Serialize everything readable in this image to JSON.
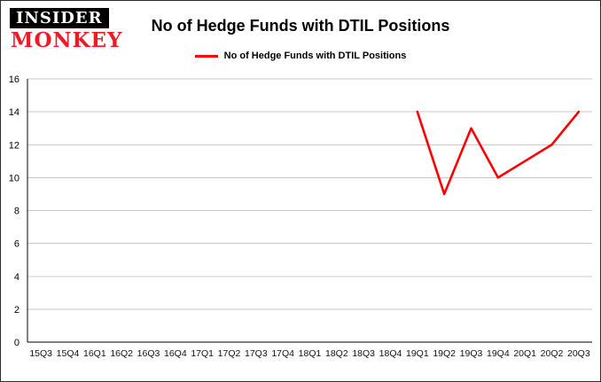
{
  "logo": {
    "line1": "INSIDER",
    "line2": "MONKEY",
    "accent_color": "#ed1c24"
  },
  "header": {
    "title": "No of Hedge Funds with DTIL Positions"
  },
  "legend": {
    "label": "No of Hedge Funds with DTIL Positions",
    "color": "#ff0000"
  },
  "chart_data": {
    "type": "line",
    "title": "No of Hedge Funds with DTIL Positions",
    "categories": [
      "15Q3",
      "15Q4",
      "16Q1",
      "16Q2",
      "16Q3",
      "16Q4",
      "17Q1",
      "17Q2",
      "17Q3",
      "17Q4",
      "18Q1",
      "18Q2",
      "18Q3",
      "18Q4",
      "19Q1",
      "19Q2",
      "19Q3",
      "19Q4",
      "20Q1",
      "20Q2",
      "20Q3"
    ],
    "series": [
      {
        "name": "No of Hedge Funds with DTIL Positions",
        "color": "#ff0000",
        "values": [
          null,
          null,
          null,
          null,
          null,
          null,
          null,
          null,
          null,
          null,
          null,
          null,
          null,
          null,
          14,
          9,
          13,
          10,
          11,
          12,
          14
        ]
      }
    ],
    "ylim": [
      0,
      16
    ],
    "yticks": [
      0,
      2,
      4,
      6,
      8,
      10,
      12,
      14,
      16
    ],
    "grid": true,
    "gridline_color": "#c8c8c8",
    "axis_color": "#000000",
    "legend_position": "top",
    "xlabel": "",
    "ylabel": ""
  }
}
